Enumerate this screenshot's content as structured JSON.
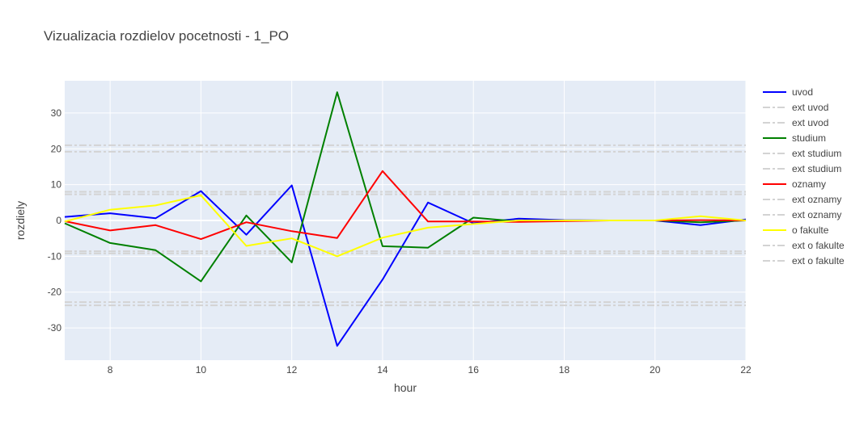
{
  "chart_data": {
    "type": "line",
    "title": "Vizualizacia rozdielov pocetnosti - 1_PO",
    "xlabel": "hour",
    "ylabel": "rozdiely",
    "xlim": [
      7,
      22
    ],
    "ylim": [
      -39,
      39
    ],
    "x_ticks": [
      8,
      10,
      12,
      14,
      16,
      18,
      20,
      22
    ],
    "y_ticks": [
      -30,
      -20,
      -10,
      0,
      10,
      20,
      30
    ],
    "grid": true,
    "legend_position": "right",
    "background": "#e5ecf6",
    "x": [
      7,
      8,
      9,
      10,
      11,
      12,
      13,
      14,
      15,
      16,
      17,
      18,
      19,
      20,
      21,
      22
    ],
    "series": [
      {
        "name": "uvod",
        "color": "#0000ff",
        "values": [
          1.0,
          2.0,
          0.6,
          8.2,
          -4.0,
          9.8,
          -35.0,
          -16.5,
          5.0,
          -0.8,
          0.5,
          0.1,
          0.0,
          0.0,
          -1.3,
          0.3
        ]
      },
      {
        "name": "studium",
        "color": "#008000",
        "values": [
          -0.8,
          -6.3,
          -8.3,
          -17.0,
          1.4,
          -11.7,
          35.8,
          -7.2,
          -7.6,
          0.8,
          -0.3,
          0.0,
          0.0,
          0.0,
          -0.5,
          0.0
        ]
      },
      {
        "name": "oznamy",
        "color": "#ff0000",
        "values": [
          -0.2,
          -2.8,
          -1.3,
          -5.2,
          -0.5,
          -3.0,
          -4.9,
          13.8,
          -0.3,
          -0.3,
          -0.4,
          -0.2,
          0.0,
          0.0,
          0.1,
          0.0
        ]
      },
      {
        "name": "o fakulte",
        "color": "#ffff00",
        "values": [
          -0.3,
          3.0,
          4.2,
          7.0,
          -7.1,
          -5.0,
          -10.0,
          -4.8,
          -2.0,
          -1.0,
          0.0,
          0.0,
          0.0,
          0.0,
          1.2,
          0.0
        ]
      }
    ],
    "ext_lines": [
      {
        "name": "ext uvod",
        "value": 21.0
      },
      {
        "name": "ext uvod",
        "value": -22.8
      },
      {
        "name": "ext studium",
        "value": 19.2
      },
      {
        "name": "ext studium",
        "value": -23.7
      },
      {
        "name": "ext oznamy",
        "value": 8.0
      },
      {
        "name": "ext oznamy",
        "value": -8.6
      },
      {
        "name": "ext o fakulte",
        "value": 7.3
      },
      {
        "name": "ext o fakulte",
        "value": -9.2
      }
    ],
    "ext_color": "#d3d3d3",
    "legend_order": [
      "uvod",
      "ext uvod",
      "ext uvod",
      "studium",
      "ext studium",
      "ext studium",
      "oznamy",
      "ext oznamy",
      "ext oznamy",
      "o fakulte",
      "ext o fakulte",
      "ext o fakulte"
    ]
  }
}
